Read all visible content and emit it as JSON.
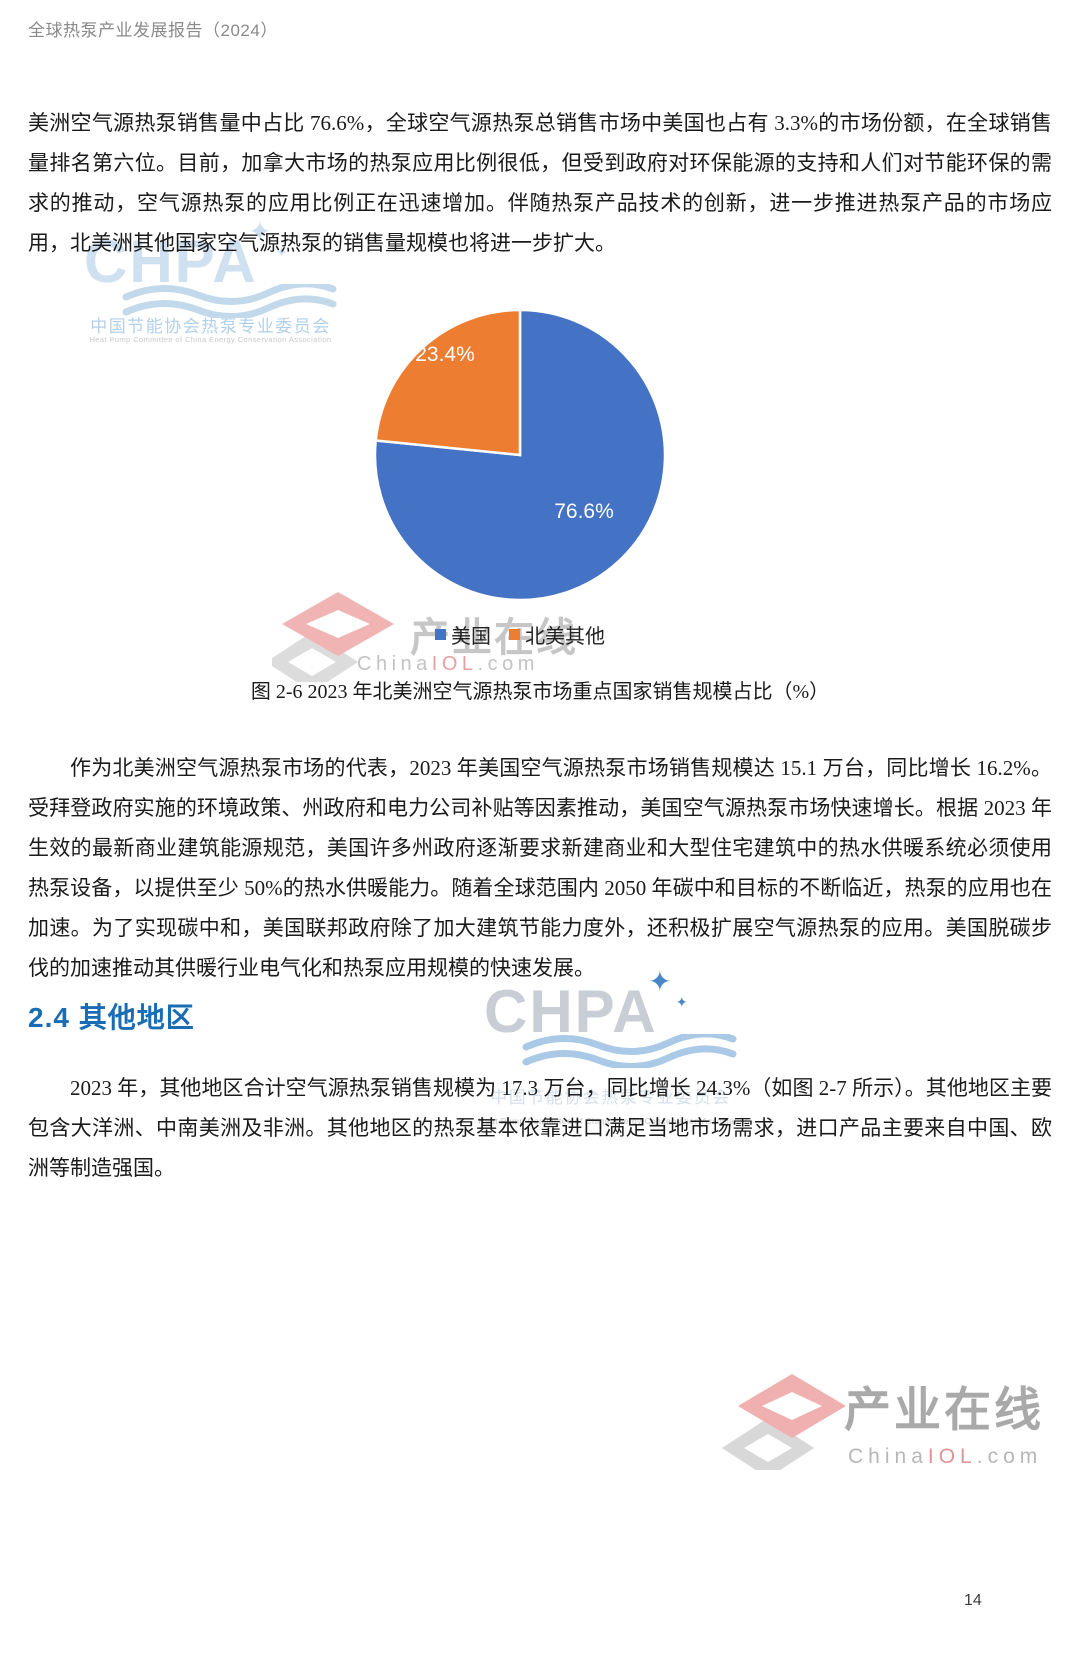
{
  "page": {
    "header": "全球热泵产业发展报告（2024）",
    "page_number": "14"
  },
  "content": {
    "paragraph_1": "美洲空气源热泵销售量中占比 76.6%，全球空气源热泵总销售市场中美国也占有 3.3%的市场份额，在全球销售量排名第六位。目前，加拿大市场的热泵应用比例很低，但受到政府对环保能源的支持和人们对节能环保的需求的推动，空气源热泵的应用比例正在迅速增加。伴随热泵产品技术的创新，进一步推进热泵产品的市场应用，北美洲其他国家空气源热泵的销售量规模也将进一步扩大。",
    "figure_caption": "图 2-6  2023 年北美洲空气源热泵市场重点国家销售规模占比（%）",
    "paragraph_2": "作为北美洲空气源热泵市场的代表，2023 年美国空气源热泵市场销售规模达 15.1 万台，同比增长 16.2%。受拜登政府实施的环境政策、州政府和电力公司补贴等因素推动，美国空气源热泵市场快速增长。根据 2023 年生效的最新商业建筑能源规范，美国许多州政府逐渐要求新建商业和大型住宅建筑中的热水供暖系统必须使用热泵设备，以提供至少 50%的热水供暖能力。随着全球范围内 2050 年碳中和目标的不断临近，热泵的应用也在加速。为了实现碳中和，美国联邦政府除了加大建筑节能力度外，还积极扩展空气源热泵的应用。美国脱碳步伐的加速推动其供暖行业电气化和热泵应用规模的快速发展。",
    "section_heading": "2.4 其他地区",
    "paragraph_3": "2023 年，其他地区合计空气源热泵销售规模为 17.3 万台，同比增长 24.3%（如图 2-7 所示）。其他地区主要包含大洋洲、中南美洲及非洲。其他地区的热泵基本依靠进口满足当地市场需求，进口产品主要来自中国、欧洲等制造强国。"
  },
  "chart_data": {
    "type": "pie",
    "title": "图 2-6 2023 年北美洲空气源热泵市场重点国家销售规模占比（%）",
    "labels": [
      "美国",
      "北美其他"
    ],
    "values": [
      76.6,
      23.4
    ],
    "data_labels": [
      "76.6%",
      "23.4%"
    ],
    "colors": [
      "#4472C4",
      "#ED7D31"
    ],
    "label_color": "#FFFFFF",
    "start_angle_deg": 0,
    "direction": "clockwise",
    "legend_position": "bottom"
  },
  "watermarks": {
    "chpa_word": "CHPA",
    "chpa_star": "✦",
    "chpa_cn": "中国节能协会热泵专业委员会",
    "chpa_en": "Heat Pump Committee of China Energy Conservation Association",
    "chinaiol_cn": "产业在线",
    "chinaiol_url_parts": {
      "pre": "China",
      "mid": "IOL",
      "post": ".com"
    }
  },
  "theme": {
    "heading_color": "#1A6DB5",
    "body_color": "#1B1B1B",
    "header_color": "#8A8A8A",
    "pie_blue": "#4472C4",
    "pie_orange": "#ED7D31"
  }
}
